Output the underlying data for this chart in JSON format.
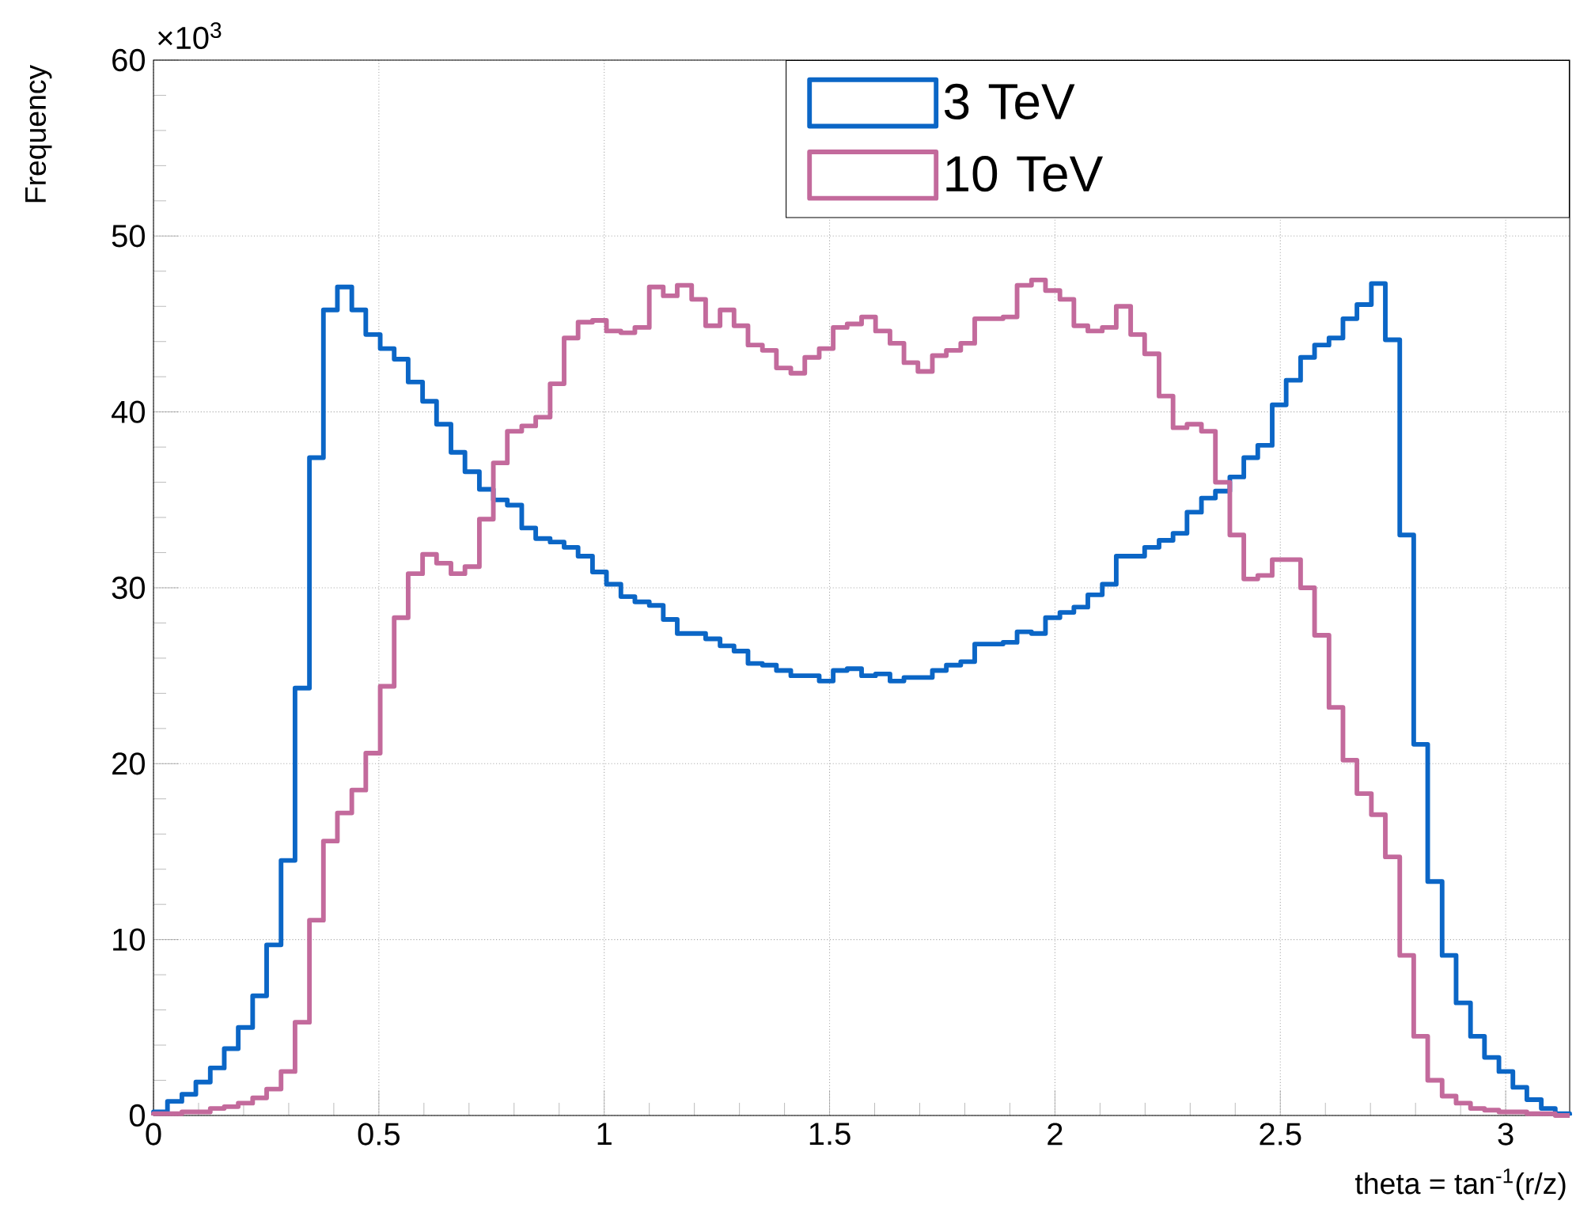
{
  "chart_data": {
    "type": "histogram",
    "xlabel": "theta = tan$^{-1}$(r/z)",
    "ylabel": "Frequency",
    "annotations": [
      "×10$^{3}$"
    ],
    "bins": [
      0,
      0.031,
      0.063,
      0.094,
      0.126,
      0.157,
      0.188,
      0.22,
      0.251,
      0.283,
      0.314,
      0.346,
      0.377,
      0.408,
      0.44,
      0.471,
      0.503,
      0.534,
      0.565,
      0.597,
      0.628,
      0.66,
      0.691,
      0.723,
      0.754,
      0.785,
      0.817,
      0.848,
      0.88,
      0.911,
      0.942,
      0.974,
      1.005,
      1.037,
      1.068,
      1.1,
      1.131,
      1.162,
      1.194,
      1.225,
      1.257,
      1.288,
      1.319,
      1.351,
      1.382,
      1.414,
      1.445,
      1.477,
      1.508,
      1.539,
      1.571,
      1.602,
      1.634,
      1.665,
      1.696,
      1.728,
      1.759,
      1.791,
      1.822,
      1.854,
      1.885,
      1.916,
      1.948,
      1.979,
      2.011,
      2.042,
      2.073,
      2.105,
      2.136,
      2.168,
      2.199,
      2.231,
      2.262,
      2.293,
      2.325,
      2.356,
      2.388,
      2.419,
      2.45,
      2.482,
      2.513,
      2.545,
      2.576,
      2.608,
      2.639,
      2.67,
      2.702,
      2.733,
      2.765,
      2.796,
      2.827,
      2.859,
      2.89,
      2.922,
      2.953,
      2.985,
      3.016,
      3.047,
      3.079,
      3.11,
      3.142
    ],
    "series": [
      {
        "name": "3 TeV",
        "color": "#0b66c6",
        "values": [
          0.2,
          0.8,
          1.2,
          1.9,
          2.7,
          3.8,
          5.0,
          6.8,
          9.7,
          14.5,
          24.3,
          37.4,
          45.8,
          47.1,
          45.8,
          44.4,
          43.6,
          43.0,
          41.7,
          40.6,
          39.3,
          37.7,
          36.6,
          35.6,
          35.0,
          34.7,
          33.4,
          32.8,
          32.6,
          32.3,
          31.8,
          30.9,
          30.2,
          29.5,
          29.2,
          29.0,
          28.2,
          27.4,
          27.4,
          27.1,
          26.7,
          26.4,
          25.7,
          25.6,
          25.3,
          25.0,
          25.0,
          24.7,
          25.3,
          25.4,
          25.0,
          25.1,
          24.7,
          24.9,
          24.9,
          25.3,
          25.6,
          25.8,
          26.8,
          26.8,
          26.9,
          27.5,
          27.4,
          28.3,
          28.6,
          28.9,
          29.6,
          30.2,
          31.8,
          31.8,
          32.3,
          32.7,
          33.1,
          34.3,
          35.1,
          35.5,
          36.3,
          37.4,
          38.1,
          40.4,
          41.8,
          43.1,
          43.8,
          44.2,
          45.3,
          46.1,
          47.3,
          44.1,
          33.0,
          21.1,
          13.3,
          9.1,
          6.4,
          4.5,
          3.3,
          2.5,
          1.6,
          0.9,
          0.4,
          0.1
        ]
      },
      {
        "name": "10 TeV",
        "color": "#c36a9c",
        "values": [
          0.1,
          0.1,
          0.2,
          0.2,
          0.4,
          0.5,
          0.7,
          1.0,
          1.5,
          2.5,
          5.3,
          11.1,
          15.6,
          17.2,
          18.5,
          20.6,
          24.4,
          28.3,
          30.8,
          31.9,
          31.4,
          30.8,
          31.2,
          33.9,
          37.1,
          38.9,
          39.2,
          39.7,
          41.6,
          44.2,
          45.1,
          45.2,
          44.6,
          44.5,
          44.8,
          47.1,
          46.6,
          47.2,
          46.4,
          44.9,
          45.8,
          44.9,
          43.8,
          43.5,
          42.5,
          42.2,
          43.1,
          43.6,
          44.8,
          45.0,
          45.4,
          44.6,
          43.9,
          42.8,
          42.3,
          43.2,
          43.5,
          43.9,
          45.3,
          45.3,
          45.4,
          47.2,
          47.5,
          46.9,
          46.4,
          44.9,
          44.6,
          44.8,
          46.0,
          44.4,
          43.3,
          40.9,
          39.1,
          39.3,
          38.9,
          36.0,
          33.0,
          30.5,
          30.7,
          31.6,
          31.6,
          30.0,
          27.3,
          23.2,
          20.2,
          18.3,
          17.1,
          14.7,
          9.1,
          4.5,
          2.0,
          1.1,
          0.7,
          0.4,
          0.3,
          0.2,
          0.2,
          0.1,
          0.1,
          0.0
        ]
      }
    ],
    "xlim": [
      0,
      3.142
    ],
    "ylim": [
      0,
      60
    ],
    "xticks": [
      0,
      0.5,
      1,
      1.5,
      2,
      2.5,
      3
    ],
    "yticks": [
      0,
      10,
      20,
      30,
      40,
      50,
      60
    ],
    "grid": true,
    "legend": "top right"
  }
}
